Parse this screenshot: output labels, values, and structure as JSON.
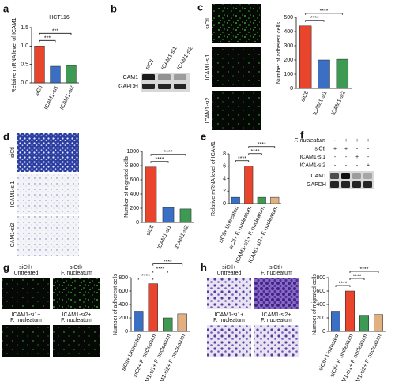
{
  "chart_data": [
    {
      "type": "bar",
      "panel": "a",
      "title": "HCT116",
      "ylabel": "Relative mRNA level of ICAM1",
      "categories": [
        "siCtl",
        "ICAM1-si1",
        "ICAM1-si2"
      ],
      "values": [
        1.0,
        0.45,
        0.47
      ],
      "colors": [
        "#e8452c",
        "#3a6fc4",
        "#3e9a52"
      ],
      "ylim": [
        0,
        1.5
      ],
      "yticks": [
        {
          "value": 0,
          "label": "0.0"
        },
        0.5,
        {
          "value": 1,
          "label": "1.0"
        },
        1.5
      ],
      "significance": [
        "***",
        "***"
      ]
    },
    {
      "type": "bar",
      "panel": "c",
      "ylabel": "Number of  adherent cells",
      "categories": [
        "siCtl",
        "ICAM1-si1",
        "ICAM1-si2"
      ],
      "values": [
        440,
        200,
        205
      ],
      "colors": [
        "#e8452c",
        "#3a6fc4",
        "#3e9a52"
      ],
      "ylim": [
        0,
        500
      ],
      "yticks": [
        0,
        100,
        200,
        300,
        400,
        500
      ],
      "significance": [
        "****",
        "****"
      ]
    },
    {
      "type": "bar",
      "panel": "d",
      "ylabel": "Number of  migrated cells",
      "categories": [
        "siCtl",
        "ICAM1-si1",
        "ICAM1-si2"
      ],
      "values": [
        780,
        210,
        190
      ],
      "colors": [
        "#e8452c",
        "#3a6fc4",
        "#3e9a52"
      ],
      "ylim": [
        0,
        1000
      ],
      "yticks": [
        0,
        200,
        400,
        600,
        800,
        1000
      ],
      "significance": [
        "****",
        "****"
      ]
    },
    {
      "type": "bar",
      "panel": "e",
      "ylabel": "Relative mRNA level of ICAM1",
      "categories": [
        "siCtl+ Untreated",
        "siCtl+ F. nucleatum",
        "ICAM1-si1+ F. nucleatum",
        "ICAM1-si2+ F. nucleatum"
      ],
      "values": [
        1,
        6,
        1,
        1
      ],
      "colors": [
        "#3a6fc4",
        "#e8452c",
        "#3e9a52",
        "#e0b080"
      ],
      "ylim": [
        0,
        8
      ],
      "yticks": [
        0,
        2,
        4,
        6,
        8
      ],
      "significance": [
        "****",
        "****",
        "****"
      ]
    },
    {
      "type": "bar",
      "panel": "g",
      "ylabel": "Number of adherent cells",
      "categories": [
        "siCtl+ Untreated",
        "siCtl+ F. nucleatum",
        "ICAM1-si1+ F. nucleatum",
        "ICAM1-si2+ F. nucleatum"
      ],
      "values": [
        300,
        710,
        200,
        260
      ],
      "colors": [
        "#3a6fc4",
        "#e8452c",
        "#3e9a52",
        "#e0b080"
      ],
      "ylim": [
        0,
        800
      ],
      "yticks": [
        0,
        200,
        400,
        600,
        800
      ],
      "significance": [
        "****",
        "****",
        "****"
      ]
    },
    {
      "type": "bar",
      "panel": "h",
      "ylabel": "Number of migrated cells",
      "categories": [
        "siCtl+ Untreated",
        "siCtl+ F. nucleatum",
        "ICAM1-si1+ F. nucleatum",
        "ICAM1-si2+ F. nucleatum"
      ],
      "values": [
        300,
        600,
        240,
        250
      ],
      "colors": [
        "#3a6fc4",
        "#e8452c",
        "#3e9a52",
        "#e0b080"
      ],
      "ylim": [
        0,
        800
      ],
      "yticks": [
        0,
        200,
        400,
        600,
        800
      ],
      "significance": [
        "****",
        "****",
        "****"
      ]
    }
  ],
  "figure": {
    "blot_b": {
      "panel": "b",
      "lanes": [
        "siCtl",
        "ICAM1-si1",
        "ICAM1-si2"
      ],
      "rows": [
        "ICAM1",
        "GAPDH"
      ]
    },
    "images_c": [
      "siCtl",
      "ICAM1-si1",
      "ICAM1-si2"
    ],
    "images_d": [
      "siCtl",
      "ICAM1-si1",
      "ICAM1-si2"
    ],
    "blot_f": {
      "panel": "f",
      "treatments": [
        "F. nucleatum",
        "siCtl",
        "ICAM1-si1",
        "ICAM1-si2"
      ],
      "signs": [
        [
          "-",
          "+",
          "+",
          "+"
        ],
        [
          "+",
          "+",
          "-",
          "-"
        ],
        [
          "-",
          "-",
          "+",
          "-"
        ],
        [
          "-",
          "-",
          "-",
          "+"
        ]
      ],
      "rows": [
        "ICAM1",
        "GAPDH"
      ]
    },
    "images_g": [
      [
        "siCtl+",
        "Untreated"
      ],
      [
        "siCtl+",
        "F. nucleatum"
      ],
      [
        "ICAM1-si1+",
        "F. nucleatum"
      ],
      [
        "ICAM1-si2+",
        "F. nucleatum"
      ]
    ],
    "images_h": [
      [
        "siCtl+",
        "Untreated"
      ],
      [
        "siCtl+",
        "F. nucleatum"
      ],
      [
        "ICAM1-si1+",
        "F. nucleatum"
      ],
      [
        "ICAM1-si2+",
        "F. nucleatum"
      ]
    ]
  }
}
